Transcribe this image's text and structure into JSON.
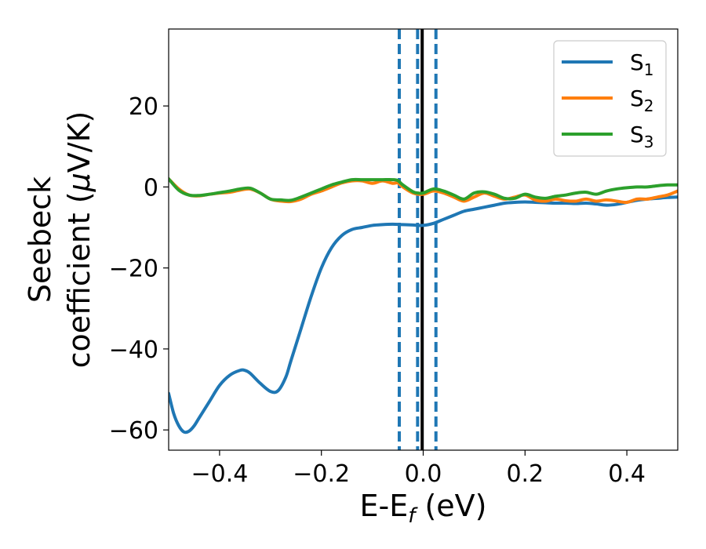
{
  "chart_data": {
    "type": "line",
    "title": "",
    "xlabel": {
      "main": "E-E",
      "sub": "f",
      "suffix": " (eV)"
    },
    "ylabel": {
      "line1": "Seebeck",
      "line2_prefix": "coefficient  (",
      "line2_mu": "μ",
      "line2_suffix": "V/K)"
    },
    "xlim": [
      -0.5,
      0.5
    ],
    "ylim": [
      -65,
      39
    ],
    "xticks": [
      -0.4,
      -0.2,
      0.0,
      0.2,
      0.4
    ],
    "xtick_labels": [
      "−0.4",
      "−0.2",
      "0.0",
      "0.2",
      "0.4"
    ],
    "yticks": [
      -60,
      -40,
      -20,
      0,
      20
    ],
    "ytick_labels": [
      "−60",
      "−40",
      "−20",
      "0",
      "20"
    ],
    "legend_position": "top-right",
    "vertical_lines": [
      {
        "x": -0.047,
        "style": "dashed",
        "color": "#1f77b4"
      },
      {
        "x": -0.011,
        "style": "dashed",
        "color": "#1f77b4"
      },
      {
        "x": 0.025,
        "style": "dashed",
        "color": "#1f77b4"
      },
      {
        "x": -0.002,
        "style": "solid",
        "color": "#000000"
      }
    ],
    "series": [
      {
        "name": "S",
        "sub": "1",
        "color": "#1f77b4",
        "x": [
          -0.5,
          -0.49,
          -0.48,
          -0.47,
          -0.46,
          -0.45,
          -0.44,
          -0.42,
          -0.4,
          -0.38,
          -0.36,
          -0.35,
          -0.34,
          -0.32,
          -0.3,
          -0.285,
          -0.27,
          -0.26,
          -0.24,
          -0.22,
          -0.2,
          -0.18,
          -0.16,
          -0.14,
          -0.12,
          -0.1,
          -0.08,
          -0.06,
          -0.04,
          -0.02,
          0.0,
          0.02,
          0.04,
          0.06,
          0.08,
          0.1,
          0.12,
          0.14,
          0.16,
          0.18,
          0.2,
          0.22,
          0.24,
          0.26,
          0.28,
          0.3,
          0.32,
          0.34,
          0.36,
          0.38,
          0.4,
          0.42,
          0.44,
          0.46,
          0.48,
          0.5
        ],
        "y": [
          -51,
          -56,
          -59,
          -60.5,
          -60.3,
          -59,
          -57,
          -53,
          -49,
          -46.5,
          -45.3,
          -45.3,
          -46,
          -48.5,
          -50.5,
          -50.3,
          -47,
          -43,
          -35,
          -27,
          -20,
          -15,
          -12,
          -10.5,
          -10,
          -9.5,
          -9.3,
          -9.2,
          -9.3,
          -9.4,
          -9.5,
          -9,
          -8,
          -7,
          -6,
          -5.5,
          -5,
          -4.5,
          -4,
          -3.8,
          -3.7,
          -3.8,
          -3.9,
          -4,
          -4,
          -4.1,
          -4,
          -4.2,
          -4.5,
          -4.3,
          -3.8,
          -3.3,
          -3,
          -2.8,
          -2.6,
          -2.5
        ]
      },
      {
        "name": "S",
        "sub": "2",
        "color": "#ff7f0e",
        "x": [
          -0.5,
          -0.48,
          -0.46,
          -0.44,
          -0.42,
          -0.4,
          -0.38,
          -0.36,
          -0.34,
          -0.32,
          -0.3,
          -0.28,
          -0.26,
          -0.24,
          -0.22,
          -0.2,
          -0.18,
          -0.16,
          -0.14,
          -0.12,
          -0.1,
          -0.08,
          -0.06,
          -0.05,
          -0.04,
          -0.02,
          0.0,
          0.02,
          0.04,
          0.06,
          0.08,
          0.1,
          0.12,
          0.14,
          0.16,
          0.18,
          0.2,
          0.22,
          0.24,
          0.26,
          0.28,
          0.3,
          0.32,
          0.34,
          0.36,
          0.38,
          0.4,
          0.42,
          0.44,
          0.46,
          0.48,
          0.5
        ],
        "y": [
          2,
          -0.5,
          -2,
          -2.2,
          -1.8,
          -1.5,
          -1.3,
          -0.8,
          -0.5,
          -1.5,
          -3,
          -3.5,
          -3.6,
          -3,
          -1.8,
          -1,
          0,
          1,
          1.5,
          1.5,
          0.9,
          1.5,
          0.9,
          1,
          0,
          -1.5,
          -1.8,
          -1,
          -1.5,
          -2.5,
          -3.5,
          -2.5,
          -1.5,
          -2.3,
          -3,
          -2.5,
          -2,
          -3.2,
          -3.5,
          -3,
          -3.4,
          -3.5,
          -3,
          -3.5,
          -3.2,
          -3.5,
          -3.8,
          -3,
          -3,
          -2.5,
          -2,
          -1
        ]
      },
      {
        "name": "S",
        "sub": "3",
        "color": "#2ca02c",
        "x": [
          -0.5,
          -0.48,
          -0.46,
          -0.44,
          -0.42,
          -0.4,
          -0.38,
          -0.36,
          -0.34,
          -0.32,
          -0.3,
          -0.28,
          -0.26,
          -0.24,
          -0.22,
          -0.2,
          -0.18,
          -0.16,
          -0.14,
          -0.12,
          -0.1,
          -0.08,
          -0.06,
          -0.05,
          -0.04,
          -0.02,
          -0.01,
          0.0,
          0.02,
          0.04,
          0.06,
          0.08,
          0.1,
          0.12,
          0.14,
          0.16,
          0.18,
          0.2,
          0.22,
          0.24,
          0.26,
          0.28,
          0.3,
          0.32,
          0.34,
          0.36,
          0.38,
          0.4,
          0.42,
          0.44,
          0.46,
          0.48,
          0.5
        ],
        "y": [
          2,
          -0.8,
          -2,
          -2.1,
          -1.8,
          -1.4,
          -1,
          -0.5,
          -0.3,
          -1.5,
          -3,
          -3.2,
          -3.3,
          -2.5,
          -1.5,
          -0.5,
          0.5,
          1.2,
          1.8,
          1.8,
          1.8,
          1.8,
          1.8,
          1.6,
          0.5,
          -1.2,
          -1.5,
          -1.5,
          -0.5,
          -1,
          -2,
          -3,
          -1.5,
          -1.2,
          -1.8,
          -2.8,
          -2.8,
          -1.8,
          -2.5,
          -2.8,
          -2.3,
          -2,
          -1.5,
          -1.3,
          -1.8,
          -1,
          -0.5,
          -0.2,
          0,
          0,
          0.3,
          0.5,
          0.5
        ]
      }
    ]
  }
}
